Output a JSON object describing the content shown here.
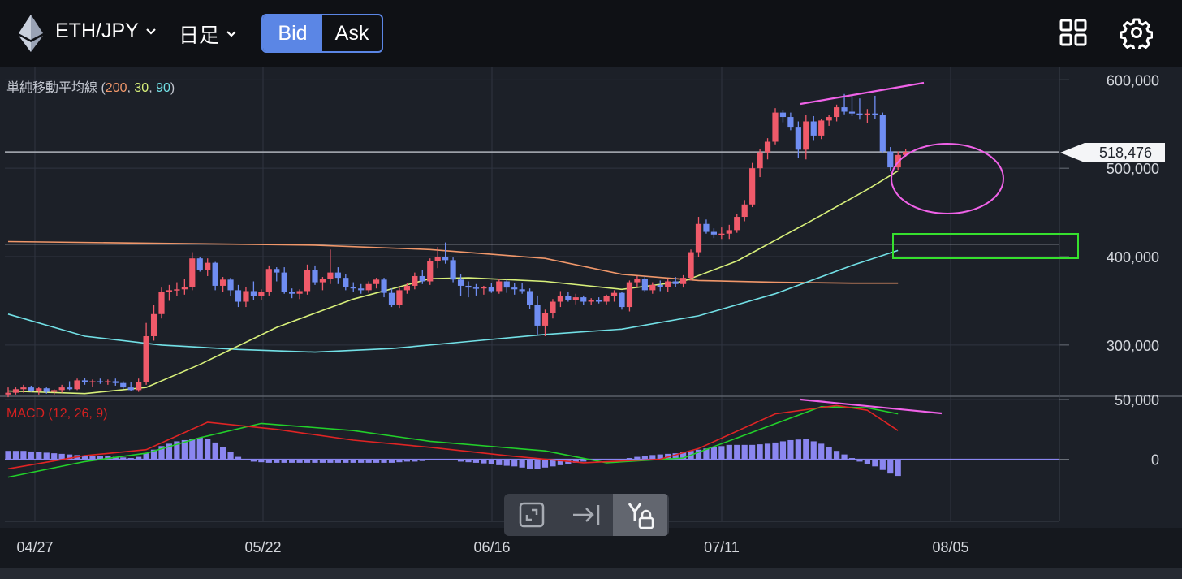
{
  "header": {
    "pair": "ETH/JPY",
    "timeframe": "日足",
    "bid_label": "Bid",
    "ask_label": "Ask",
    "active_side": "Bid"
  },
  "colors": {
    "up_candle": "#f05a6a",
    "down_candle": "#6f8df2",
    "ma200": "#f0976a",
    "ma30": "#d8f07a",
    "ma90": "#72e0e6",
    "macd": "#e02424",
    "signal": "#22d02a",
    "histogram": "#8a86f0",
    "annotation_magenta": "#f062e8",
    "annotation_green": "#36e02e"
  },
  "icons": {
    "layout": "grid-icon",
    "settings": "gear-icon",
    "logo": "ethereum-logo-icon"
  },
  "toolbar": {
    "tools": [
      "fullscreen-icon",
      "scroll-to-latest-icon",
      "y-axis-lock-icon"
    ],
    "active": "y-axis-lock-icon"
  },
  "chart_data": [
    {
      "type": "candlestick",
      "title": "",
      "indicator_label": {
        "name": "単純移動平均線",
        "open": " (",
        "p1": "200",
        "sep1": ", ",
        "p2": "30",
        "sep2": ", ",
        "p3": "90",
        "close": ")"
      },
      "x_ticks": [
        "04/27",
        "05/22",
        "06/16",
        "07/11",
        "08/05"
      ],
      "y_ticks": [
        "600,000",
        "500,000",
        "400,000",
        "300,000"
      ],
      "ylim": [
        242000,
        615000
      ],
      "current_price": 518476,
      "current_price_label": "518,476",
      "horizontal_line": 414000,
      "grid": true,
      "candles": [
        [
          244000,
          252000,
          241000,
          246000
        ],
        [
          246000,
          252000,
          244000,
          250000
        ],
        [
          250000,
          255000,
          246000,
          252000
        ],
        [
          252000,
          254000,
          247000,
          248000
        ],
        [
          248000,
          253000,
          244000,
          251000
        ],
        [
          251000,
          252000,
          245000,
          247000
        ],
        [
          247000,
          250000,
          243000,
          249000
        ],
        [
          249000,
          255000,
          246000,
          252000
        ],
        [
          252000,
          259000,
          249000,
          250000
        ],
        [
          250000,
          262000,
          249000,
          260000
        ],
        [
          260000,
          263000,
          255000,
          258000
        ],
        [
          258000,
          261000,
          253000,
          259000
        ],
        [
          259000,
          262000,
          256000,
          258000
        ],
        [
          258000,
          261000,
          255000,
          259000
        ],
        [
          259000,
          262000,
          254000,
          257000
        ],
        [
          257000,
          259000,
          250000,
          252000
        ],
        [
          252000,
          258000,
          248000,
          249000
        ],
        [
          249000,
          262000,
          247000,
          258000
        ],
        [
          258000,
          325000,
          255000,
          310000
        ],
        [
          310000,
          345000,
          305000,
          335000
        ],
        [
          335000,
          365000,
          330000,
          360000
        ],
        [
          360000,
          368000,
          350000,
          362000
        ],
        [
          362000,
          371000,
          355000,
          363000
        ],
        [
          363000,
          375000,
          357000,
          366000
        ],
        [
          366000,
          405000,
          362000,
          398000
        ],
        [
          398000,
          400000,
          383000,
          385000
        ],
        [
          385000,
          398000,
          378000,
          393000
        ],
        [
          393000,
          394000,
          362000,
          367000
        ],
        [
          367000,
          377000,
          360000,
          374000
        ],
        [
          374000,
          376000,
          355000,
          362000
        ],
        [
          362000,
          368000,
          343000,
          349000
        ],
        [
          349000,
          366000,
          343000,
          361000
        ],
        [
          361000,
          372000,
          351000,
          355000
        ],
        [
          355000,
          363000,
          351000,
          360000
        ],
        [
          360000,
          390000,
          356000,
          386000
        ],
        [
          386000,
          388000,
          372000,
          382000
        ],
        [
          382000,
          388000,
          358000,
          360000
        ],
        [
          360000,
          364000,
          353000,
          358000
        ],
        [
          358000,
          363000,
          352000,
          361000
        ],
        [
          361000,
          391000,
          357000,
          385000
        ],
        [
          385000,
          390000,
          368000,
          371000
        ],
        [
          371000,
          377000,
          362000,
          375000
        ],
        [
          375000,
          408000,
          369000,
          382000
        ],
        [
          382000,
          388000,
          369000,
          376000
        ],
        [
          376000,
          380000,
          362000,
          366000
        ],
        [
          366000,
          371000,
          360000,
          364000
        ],
        [
          364000,
          369000,
          358000,
          362000
        ],
        [
          362000,
          372000,
          359000,
          369000
        ],
        [
          369000,
          376000,
          364000,
          374000
        ],
        [
          374000,
          376000,
          354000,
          359000
        ],
        [
          359000,
          364000,
          343000,
          345000
        ],
        [
          345000,
          365000,
          342000,
          362000
        ],
        [
          362000,
          370000,
          358000,
          367000
        ],
        [
          367000,
          382000,
          363000,
          378000
        ],
        [
          378000,
          385000,
          369000,
          372000
        ],
        [
          372000,
          398000,
          368000,
          395000
        ],
        [
          395000,
          411000,
          387000,
          400000
        ],
        [
          400000,
          416000,
          392000,
          396000
        ],
        [
          396000,
          399000,
          371000,
          374000
        ],
        [
          374000,
          380000,
          355000,
          367000
        ],
        [
          367000,
          372000,
          354000,
          365000
        ],
        [
          365000,
          369000,
          356000,
          364000
        ],
        [
          364000,
          367000,
          357000,
          366000
        ],
        [
          366000,
          370000,
          359000,
          361000
        ],
        [
          361000,
          375000,
          358000,
          372000
        ],
        [
          372000,
          374000,
          359000,
          365000
        ],
        [
          365000,
          370000,
          357000,
          363000
        ],
        [
          363000,
          370000,
          358000,
          361000
        ],
        [
          361000,
          364000,
          341000,
          345000
        ],
        [
          345000,
          356000,
          312000,
          322000
        ],
        [
          322000,
          340000,
          310000,
          336000
        ],
        [
          336000,
          352000,
          330000,
          349000
        ],
        [
          349000,
          361000,
          343000,
          355000
        ],
        [
          355000,
          360000,
          349000,
          351000
        ],
        [
          351000,
          358000,
          346000,
          354000
        ],
        [
          354000,
          356000,
          345000,
          349000
        ],
        [
          349000,
          353000,
          345000,
          351000
        ],
        [
          351000,
          354000,
          347000,
          349000
        ],
        [
          349000,
          357000,
          346000,
          355000
        ],
        [
          355000,
          362000,
          349000,
          359000
        ],
        [
          359000,
          360000,
          340000,
          343000
        ],
        [
          343000,
          373000,
          338000,
          371000
        ],
        [
          371000,
          378000,
          366000,
          375000
        ],
        [
          375000,
          378000,
          360000,
          362000
        ],
        [
          362000,
          371000,
          358000,
          368000
        ],
        [
          368000,
          373000,
          361000,
          366000
        ],
        [
          366000,
          375000,
          360000,
          372000
        ],
        [
          372000,
          377000,
          366000,
          369000
        ],
        [
          369000,
          379000,
          365000,
          376000
        ],
        [
          376000,
          408000,
          373000,
          405000
        ],
        [
          405000,
          445000,
          400000,
          437000
        ],
        [
          437000,
          442000,
          426000,
          428000
        ],
        [
          428000,
          432000,
          421000,
          425000
        ],
        [
          425000,
          433000,
          420000,
          426000
        ],
        [
          426000,
          436000,
          420000,
          430000
        ],
        [
          430000,
          448000,
          427000,
          445000
        ],
        [
          445000,
          464000,
          440000,
          459000
        ],
        [
          459000,
          506000,
          456000,
          500000
        ],
        [
          500000,
          522000,
          490000,
          518000
        ],
        [
          518000,
          534000,
          510000,
          530000
        ],
        [
          530000,
          568000,
          527000,
          563000
        ],
        [
          563000,
          566000,
          552000,
          558000
        ],
        [
          558000,
          563000,
          543000,
          546000
        ],
        [
          546000,
          553000,
          512000,
          521000
        ],
        [
          521000,
          560000,
          510000,
          553000
        ],
        [
          553000,
          559000,
          531000,
          537000
        ],
        [
          537000,
          556000,
          533000,
          554000
        ],
        [
          554000,
          560000,
          548000,
          558000
        ],
        [
          558000,
          572000,
          553000,
          569000
        ],
        [
          569000,
          584000,
          561000,
          564000
        ],
        [
          564000,
          582000,
          559000,
          562000
        ],
        [
          562000,
          579000,
          555000,
          561000
        ],
        [
          561000,
          567000,
          551000,
          562000
        ],
        [
          562000,
          582000,
          556000,
          560000
        ],
        [
          560000,
          563000,
          517000,
          519000
        ],
        [
          519000,
          524000,
          497000,
          501000
        ],
        [
          501000,
          519000,
          498000,
          515000
        ],
        [
          515000,
          522000,
          513000,
          518476
        ]
      ],
      "ma200": [
        [
          0,
          417000
        ],
        [
          20,
          415000
        ],
        [
          40,
          413000
        ],
        [
          55,
          408000
        ],
        [
          70,
          398000
        ],
        [
          80,
          380000
        ],
        [
          90,
          373000
        ],
        [
          100,
          371000
        ],
        [
          110,
          370000
        ],
        [
          116,
          370000
        ]
      ],
      "ma30": [
        [
          0,
          248000
        ],
        [
          10,
          245000
        ],
        [
          18,
          252000
        ],
        [
          25,
          278000
        ],
        [
          35,
          320000
        ],
        [
          45,
          352000
        ],
        [
          55,
          375000
        ],
        [
          60,
          376000
        ],
        [
          70,
          372000
        ],
        [
          80,
          363000
        ],
        [
          88,
          372000
        ],
        [
          95,
          395000
        ],
        [
          105,
          442000
        ],
        [
          112,
          476000
        ],
        [
          116,
          497000
        ]
      ],
      "ma90": [
        [
          0,
          335000
        ],
        [
          10,
          310000
        ],
        [
          20,
          300000
        ],
        [
          30,
          295000
        ],
        [
          40,
          292000
        ],
        [
          50,
          296000
        ],
        [
          60,
          304000
        ],
        [
          70,
          312000
        ],
        [
          80,
          318000
        ],
        [
          90,
          333000
        ],
        [
          100,
          358000
        ],
        [
          110,
          390000
        ],
        [
          116,
          407000
        ]
      ]
    },
    {
      "type": "macd",
      "title": "",
      "indicator_label": "MACD (12, 26, 9)",
      "y_ticks": [
        "50,000",
        "0"
      ],
      "ylim": [
        -52000,
        52000
      ],
      "macd": [
        [
          0,
          -8000
        ],
        [
          10,
          3000
        ],
        [
          18,
          8000
        ],
        [
          26,
          31000
        ],
        [
          35,
          25000
        ],
        [
          45,
          16000
        ],
        [
          55,
          10000
        ],
        [
          65,
          3000
        ],
        [
          75,
          -3000
        ],
        [
          85,
          0
        ],
        [
          90,
          9000
        ],
        [
          100,
          38000
        ],
        [
          108,
          45000
        ],
        [
          112,
          41000
        ],
        [
          116,
          24000
        ]
      ],
      "signal": [
        [
          0,
          -15000
        ],
        [
          10,
          -2000
        ],
        [
          18,
          5000
        ],
        [
          25,
          18000
        ],
        [
          33,
          30000
        ],
        [
          45,
          24000
        ],
        [
          55,
          15000
        ],
        [
          70,
          7000
        ],
        [
          78,
          -3000
        ],
        [
          88,
          1000
        ],
        [
          98,
          25000
        ],
        [
          106,
          44000
        ],
        [
          112,
          43000
        ],
        [
          116,
          38000
        ]
      ],
      "histogram": [
        7000,
        7000,
        7000,
        6500,
        6000,
        5500,
        5000,
        4500,
        4000,
        3500,
        3000,
        3000,
        3000,
        2500,
        2000,
        1500,
        1000,
        2000,
        5000,
        8000,
        11000,
        13000,
        15000,
        16000,
        17000,
        18000,
        17000,
        14000,
        10000,
        6000,
        2000,
        -1000,
        -2000,
        -2500,
        -3000,
        -3000,
        -3000,
        -3000,
        -3000,
        -3000,
        -3000,
        -3000,
        -3000,
        -3000,
        -3000,
        -3000,
        -3000,
        -3000,
        -3000,
        -3000,
        -3000,
        -2500,
        -2000,
        -2000,
        -1500,
        -1000,
        -500,
        -500,
        -1000,
        -2000,
        -2500,
        -3000,
        -3500,
        -4000,
        -5000,
        -5500,
        -6000,
        -7000,
        -8000,
        -8000,
        -7000,
        -6000,
        -5000,
        -4000,
        -3000,
        -2000,
        -1000,
        -1000,
        -1000,
        -500,
        -500,
        1000,
        2000,
        3000,
        3500,
        4000,
        4500,
        5000,
        6000,
        7000,
        8000,
        9000,
        10000,
        11000,
        12000,
        12000,
        12000,
        12000,
        12500,
        13000,
        14000,
        15000,
        16000,
        16500,
        17000,
        15000,
        13000,
        10000,
        7000,
        4000,
        1000,
        -2000,
        -4000,
        -6000,
        -9000,
        -12000,
        -14000
      ]
    }
  ]
}
